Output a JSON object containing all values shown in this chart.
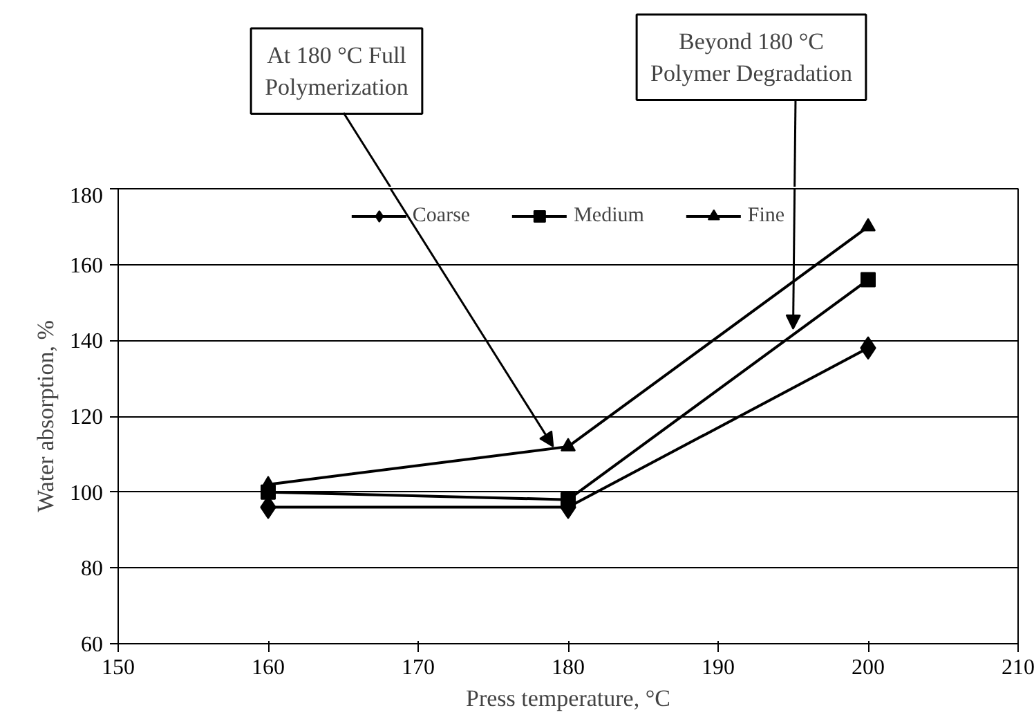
{
  "chart_data": {
    "type": "line",
    "x": [
      160,
      180,
      200
    ],
    "xlabel": "Press temperature, °C",
    "ylabel": "Water absorption, %",
    "xlim": [
      150,
      210
    ],
    "xticks": [
      150,
      160,
      170,
      180,
      190,
      200,
      210
    ],
    "ylim": [
      60,
      180
    ],
    "yticks": [
      60,
      80,
      100,
      120,
      140,
      160,
      180
    ],
    "grid": "y",
    "legend": "top",
    "series": [
      {
        "name": "Coarse",
        "color": "#000000",
        "marker": "diamond",
        "values": [
          96,
          96,
          138
        ]
      },
      {
        "name": "Medium",
        "color": "#000000",
        "marker": "square",
        "values": [
          100,
          98,
          156
        ]
      },
      {
        "name": "Fine",
        "color": "#000000",
        "marker": "triangle",
        "values": [
          102,
          112,
          170
        ]
      }
    ],
    "annotations": [
      {
        "text": "At 180 °C Full\nPolymerization",
        "x": 179,
        "y": 112
      },
      {
        "text": "Beyond 180 °C\nPolymer Degradation",
        "x": 195,
        "y": 143
      }
    ]
  }
}
